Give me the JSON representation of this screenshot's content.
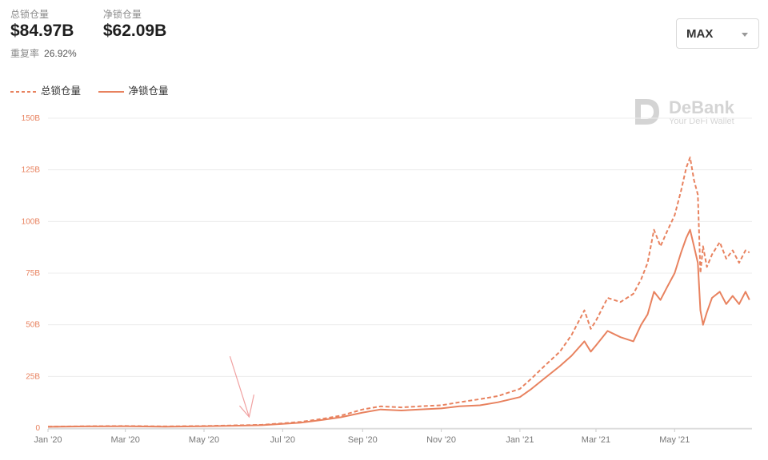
{
  "header": {
    "tvl_label": "总锁仓量",
    "tvl_value": "$84.97B",
    "net_label": "净锁仓量",
    "net_value": "$62.09B",
    "overlap_label": "重复率",
    "overlap_value": "26.92%"
  },
  "range_select": {
    "value": "MAX"
  },
  "watermark": {
    "brand": "DeBank",
    "tagline": "Your DeFi Wallet"
  },
  "colors": {
    "line": "#e8825f",
    "grid": "#ececec",
    "tick": "#e8825f",
    "xtick": "#777777",
    "arrow": "#f0a0a0"
  },
  "chart_data": {
    "type": "line",
    "title": "",
    "ylim": [
      0,
      150
    ],
    "yticks": [
      0,
      25,
      50,
      75,
      100,
      125,
      150
    ],
    "ytick_labels": [
      "0",
      "25B",
      "50B",
      "75B",
      "100B",
      "125B",
      "150B"
    ],
    "xlim": [
      "2020-01-01",
      "2021-06-30"
    ],
    "xtick_labels": [
      "Jan '20",
      "Mar '20",
      "May '20",
      "Jul '20",
      "Sep '20",
      "Nov '20",
      "Jan '21",
      "Mar '21",
      "May '21"
    ],
    "xtick_dates": [
      "2020-01-01",
      "2020-03-01",
      "2020-05-01",
      "2020-07-01",
      "2020-09-01",
      "2020-11-01",
      "2021-01-01",
      "2021-03-01",
      "2021-05-01"
    ],
    "grid": true,
    "legend_position": "top-left",
    "series": [
      {
        "name": "总锁仓量",
        "style": "dashed",
        "points": [
          [
            "2020-01-01",
            0.7
          ],
          [
            "2020-02-01",
            0.9
          ],
          [
            "2020-03-01",
            1.0
          ],
          [
            "2020-04-01",
            0.8
          ],
          [
            "2020-05-01",
            1.0
          ],
          [
            "2020-06-01",
            1.4
          ],
          [
            "2020-06-15",
            1.6
          ],
          [
            "2020-07-01",
            2.3
          ],
          [
            "2020-07-15",
            3.0
          ],
          [
            "2020-08-01",
            4.5
          ],
          [
            "2020-08-15",
            6.0
          ],
          [
            "2020-09-01",
            9.0
          ],
          [
            "2020-09-15",
            10.5
          ],
          [
            "2020-10-01",
            10.0
          ],
          [
            "2020-10-15",
            10.5
          ],
          [
            "2020-11-01",
            11.0
          ],
          [
            "2020-11-15",
            12.5
          ],
          [
            "2020-12-01",
            14.0
          ],
          [
            "2020-12-15",
            15.5
          ],
          [
            "2021-01-01",
            19.0
          ],
          [
            "2021-01-10",
            24.0
          ],
          [
            "2021-01-20",
            30.0
          ],
          [
            "2021-02-01",
            37.0
          ],
          [
            "2021-02-10",
            45.0
          ],
          [
            "2021-02-20",
            57.0
          ],
          [
            "2021-02-25",
            48.0
          ],
          [
            "2021-03-01",
            52.0
          ],
          [
            "2021-03-10",
            63.0
          ],
          [
            "2021-03-20",
            61.0
          ],
          [
            "2021-03-30",
            65.0
          ],
          [
            "2021-04-05",
            72.0
          ],
          [
            "2021-04-10",
            80.0
          ],
          [
            "2021-04-15",
            96.0
          ],
          [
            "2021-04-20",
            88.0
          ],
          [
            "2021-04-25",
            95.0
          ],
          [
            "2021-05-01",
            103.0
          ],
          [
            "2021-05-06",
            115.0
          ],
          [
            "2021-05-10",
            126.0
          ],
          [
            "2021-05-13",
            131.0
          ],
          [
            "2021-05-16",
            120.0
          ],
          [
            "2021-05-19",
            113.0
          ],
          [
            "2021-05-21",
            75.0
          ],
          [
            "2021-05-23",
            88.0
          ],
          [
            "2021-05-26",
            78.0
          ],
          [
            "2021-05-30",
            84.0
          ],
          [
            "2021-06-05",
            90.0
          ],
          [
            "2021-06-10",
            82.0
          ],
          [
            "2021-06-15",
            86.0
          ],
          [
            "2021-06-20",
            80.0
          ],
          [
            "2021-06-25",
            86.0
          ],
          [
            "2021-06-28",
            84.97
          ]
        ]
      },
      {
        "name": "净锁仓量",
        "style": "solid",
        "points": [
          [
            "2020-01-01",
            0.6
          ],
          [
            "2020-02-01",
            0.8
          ],
          [
            "2020-03-01",
            0.9
          ],
          [
            "2020-04-01",
            0.7
          ],
          [
            "2020-05-01",
            0.9
          ],
          [
            "2020-06-01",
            1.2
          ],
          [
            "2020-06-15",
            1.4
          ],
          [
            "2020-07-01",
            2.0
          ],
          [
            "2020-07-15",
            2.6
          ],
          [
            "2020-08-01",
            4.0
          ],
          [
            "2020-08-15",
            5.2
          ],
          [
            "2020-09-01",
            7.5
          ],
          [
            "2020-09-15",
            9.0
          ],
          [
            "2020-10-01",
            8.5
          ],
          [
            "2020-10-15",
            9.0
          ],
          [
            "2020-11-01",
            9.5
          ],
          [
            "2020-11-15",
            10.5
          ],
          [
            "2020-12-01",
            11.0
          ],
          [
            "2020-12-15",
            12.5
          ],
          [
            "2021-01-01",
            15.0
          ],
          [
            "2021-01-10",
            19.0
          ],
          [
            "2021-01-20",
            24.0
          ],
          [
            "2021-02-01",
            30.0
          ],
          [
            "2021-02-10",
            35.0
          ],
          [
            "2021-02-20",
            42.0
          ],
          [
            "2021-02-25",
            37.0
          ],
          [
            "2021-03-01",
            40.0
          ],
          [
            "2021-03-10",
            47.0
          ],
          [
            "2021-03-20",
            44.0
          ],
          [
            "2021-03-30",
            42.0
          ],
          [
            "2021-04-05",
            50.0
          ],
          [
            "2021-04-10",
            55.0
          ],
          [
            "2021-04-15",
            66.0
          ],
          [
            "2021-04-20",
            62.0
          ],
          [
            "2021-04-25",
            68.0
          ],
          [
            "2021-05-01",
            75.0
          ],
          [
            "2021-05-06",
            85.0
          ],
          [
            "2021-05-10",
            92.0
          ],
          [
            "2021-05-13",
            96.0
          ],
          [
            "2021-05-16",
            88.0
          ],
          [
            "2021-05-19",
            80.0
          ],
          [
            "2021-05-21",
            57.0
          ],
          [
            "2021-05-23",
            50.0
          ],
          [
            "2021-05-26",
            56.0
          ],
          [
            "2021-05-30",
            63.0
          ],
          [
            "2021-06-05",
            66.0
          ],
          [
            "2021-06-10",
            60.0
          ],
          [
            "2021-06-15",
            64.0
          ],
          [
            "2021-06-20",
            60.0
          ],
          [
            "2021-06-25",
            66.0
          ],
          [
            "2021-06-28",
            62.09
          ]
        ]
      }
    ],
    "annotations": [
      {
        "type": "arrow",
        "points_to": [
          "2020-06-05",
          1.5
        ]
      }
    ]
  }
}
